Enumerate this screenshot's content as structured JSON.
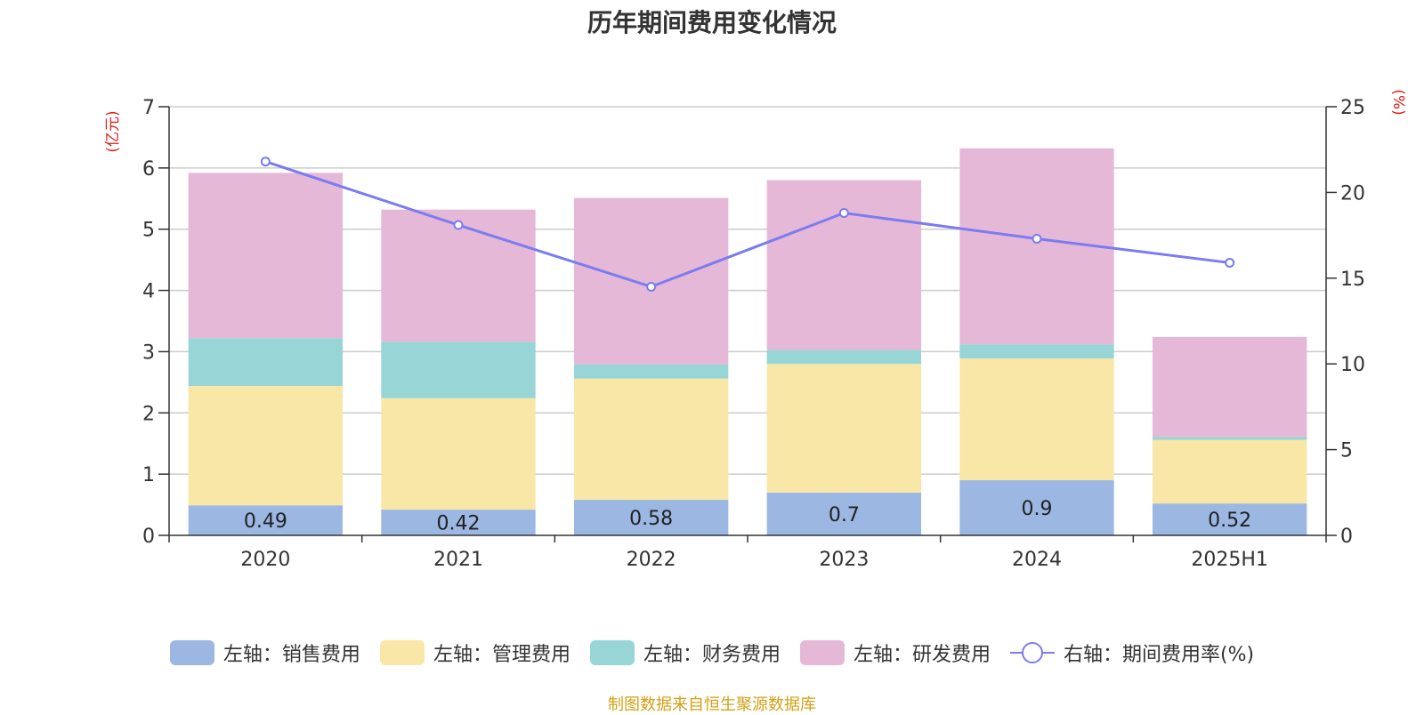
{
  "chart_data": {
    "type": "bar",
    "title": "历年期间费用变化情况",
    "categories": [
      "2020",
      "2021",
      "2022",
      "2023",
      "2024",
      "2025H1"
    ],
    "stacked": true,
    "y_left": {
      "unit_label": "(亿元)",
      "range": [
        0,
        7
      ],
      "ticks": [
        "0",
        "1",
        "2",
        "3",
        "4",
        "5",
        "6",
        "7"
      ]
    },
    "y_right": {
      "unit_label": "(%)",
      "range": [
        0,
        25
      ],
      "ticks": [
        "0",
        "5",
        "10",
        "15",
        "20",
        "25"
      ]
    },
    "grid": true,
    "legend_position": "bottom",
    "series": [
      {
        "name": "左轴：销售费用",
        "axis": "left",
        "color": "#9bb7e2",
        "values": [
          0.49,
          0.42,
          0.58,
          0.7,
          0.9,
          0.52
        ],
        "data_labels": [
          "0.49",
          "0.42",
          "0.58",
          "0.7",
          "0.9",
          "0.52"
        ]
      },
      {
        "name": "左轴：管理费用",
        "axis": "left",
        "color": "#f8e7a6",
        "values": [
          1.95,
          1.82,
          1.98,
          2.1,
          1.99,
          1.04
        ]
      },
      {
        "name": "左轴：财务费用",
        "axis": "left",
        "color": "#98d5d6",
        "values": [
          0.78,
          0.92,
          0.23,
          0.23,
          0.23,
          0.05
        ]
      },
      {
        "name": "左轴：研发费用",
        "axis": "left",
        "color": "#e6b8d8",
        "values": [
          2.7,
          2.16,
          2.72,
          2.77,
          3.2,
          1.63
        ]
      },
      {
        "name": "右轴：期间费用率(%)",
        "axis": "right",
        "type": "line",
        "color": "#7a7cf0",
        "values": [
          21.8,
          18.1,
          14.5,
          18.8,
          17.3,
          15.9
        ]
      }
    ]
  },
  "source_text": "制图数据来自恒生聚源数据库"
}
